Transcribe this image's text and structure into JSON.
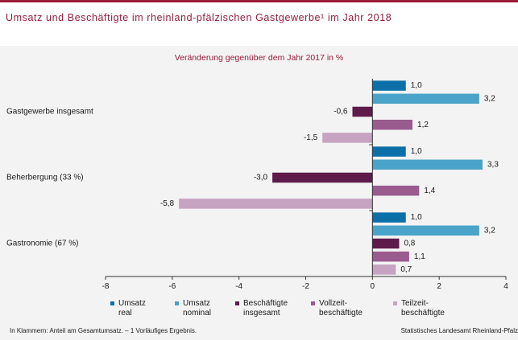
{
  "title": "Umsatz und Beschäftigte im rheinland-pfälzischen Gastgewerbe¹ im Jahr 2018",
  "footnote": "In Klammern: Anteil am Gesamtumsatz. – 1 Vorläufiges Ergebnis.",
  "source": "Statistisches Landesamt Rheinland-Pfalz",
  "chart_data": {
    "type": "bar",
    "orientation": "horizontal",
    "title": "Veränderung gegenüber dem Jahr 2017 in %",
    "categories": [
      "Gastgewerbe insgesamt",
      "Beherbergung (33 %)",
      "Gastronomie (67 %)"
    ],
    "series": [
      {
        "name": "Umsatz real",
        "legend_lines": [
          "Umsatz",
          "real"
        ],
        "color": "#0d6fa8",
        "values": [
          1.0,
          1.0,
          1.0
        ],
        "labels": [
          "1,0",
          "1,0",
          "1,0"
        ]
      },
      {
        "name": "Umsatz nominal",
        "legend_lines": [
          "Umsatz",
          "nominal"
        ],
        "color": "#4aa3c8",
        "values": [
          3.2,
          3.3,
          3.2
        ],
        "labels": [
          "3,2",
          "3,3",
          "3,2"
        ]
      },
      {
        "name": "Beschäftigte insgesamt",
        "legend_lines": [
          "Beschäftigte",
          "insgesamt"
        ],
        "color": "#5e1a4a",
        "values": [
          -0.6,
          -3.0,
          0.8
        ],
        "labels": [
          "-0,6",
          "-3,0",
          "0,8"
        ]
      },
      {
        "name": "Vollzeit-beschäftigte",
        "legend_lines": [
          "Vollzeit-",
          "beschäftigte"
        ],
        "color": "#9a5b8e",
        "values": [
          1.2,
          1.4,
          1.1
        ],
        "labels": [
          "1,2",
          "1,4",
          "1,1"
        ]
      },
      {
        "name": "Teilzeit-beschäftigte",
        "legend_lines": [
          "Teilzeit-",
          "beschäftigte"
        ],
        "color": "#c6a3c1",
        "values": [
          -1.5,
          -5.8,
          0.7
        ],
        "labels": [
          "-1,5",
          "-5,8",
          "0,7"
        ]
      }
    ],
    "xlim": [
      -8,
      4
    ],
    "xticks": [
      -8,
      -6,
      -4,
      -2,
      0,
      2,
      4
    ],
    "xtick_labels": [
      "-8",
      "-6",
      "-4",
      "-2",
      "0",
      "2",
      "4"
    ],
    "grid": false,
    "legend": "bottom"
  }
}
